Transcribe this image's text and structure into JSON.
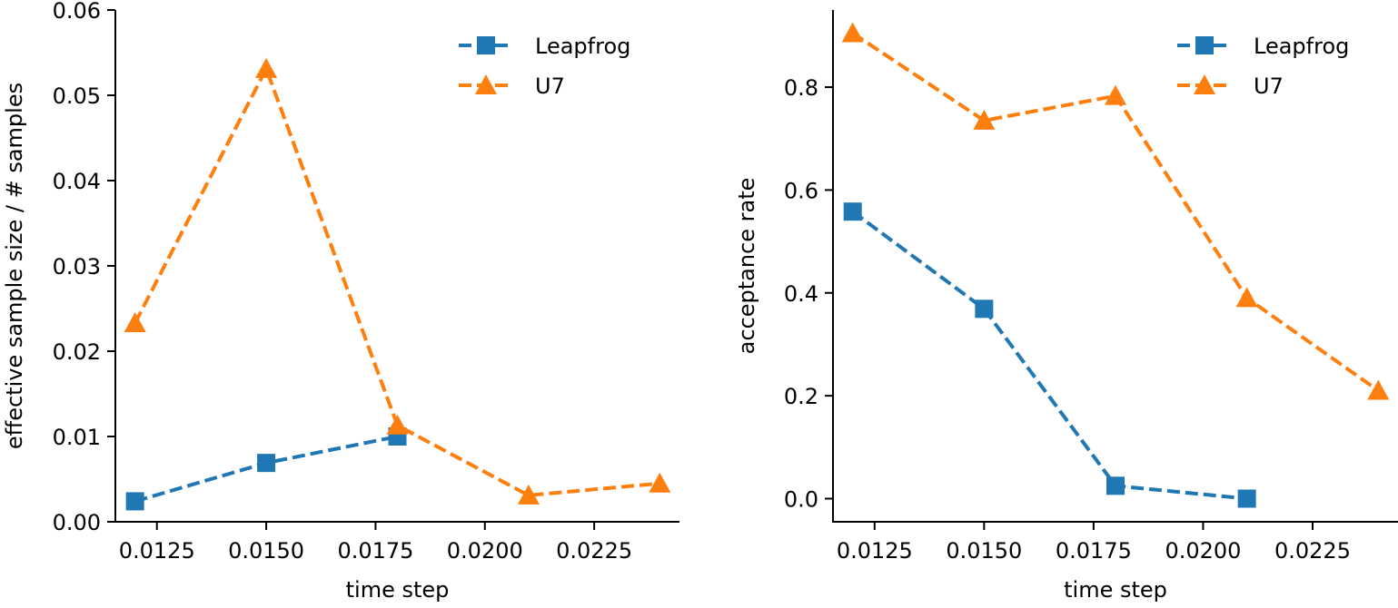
{
  "chart_data": [
    {
      "type": "line",
      "title": "",
      "xlabel": "time step",
      "ylabel": "effective sample size / # samples",
      "xlim": [
        0.01155,
        0.02445
      ],
      "ylim": [
        0.0,
        0.06
      ],
      "xticks": [
        0.0125,
        0.015,
        0.0175,
        0.02,
        0.0225
      ],
      "xtick_labels": [
        "0.0125",
        "0.0150",
        "0.0175",
        "0.0200",
        "0.0225"
      ],
      "yticks": [
        0.0,
        0.01,
        0.02,
        0.03,
        0.04,
        0.05,
        0.06
      ],
      "ytick_labels": [
        "0.00",
        "0.01",
        "0.02",
        "0.03",
        "0.04",
        "0.05",
        "0.06"
      ],
      "grid": false,
      "legend": "top-right",
      "series": [
        {
          "name": "Leapfrog",
          "color": "#1f77b4",
          "marker": "square",
          "linestyle": "dashed",
          "x": [
            0.012,
            0.015,
            0.018
          ],
          "y": [
            0.0024,
            0.0069,
            0.01
          ]
        },
        {
          "name": "U7",
          "color": "#ff7f0e",
          "marker": "triangle",
          "linestyle": "dashed",
          "x": [
            0.012,
            0.015,
            0.018,
            0.021,
            0.024
          ],
          "y": [
            0.0233,
            0.0531,
            0.0113,
            0.0031,
            0.0045
          ]
        }
      ]
    },
    {
      "type": "line",
      "title": "",
      "xlabel": "time step",
      "ylabel": "acceptance rate",
      "xlim": [
        0.01155,
        0.02445
      ],
      "ylim": [
        -0.045,
        0.95
      ],
      "xticks": [
        0.0125,
        0.015,
        0.0175,
        0.02,
        0.0225
      ],
      "xtick_labels": [
        "0.0125",
        "0.0150",
        "0.0175",
        "0.0200",
        "0.0225"
      ],
      "yticks": [
        0.0,
        0.2,
        0.4,
        0.6,
        0.8
      ],
      "ytick_labels": [
        "0.0",
        "0.2",
        "0.4",
        "0.6",
        "0.8"
      ],
      "grid": false,
      "legend": "top-right",
      "series": [
        {
          "name": "Leapfrog",
          "color": "#1f77b4",
          "marker": "square",
          "linestyle": "dashed",
          "x": [
            0.012,
            0.015,
            0.018,
            0.021
          ],
          "y": [
            0.558,
            0.369,
            0.025,
            0.0
          ]
        },
        {
          "name": "U7",
          "color": "#ff7f0e",
          "marker": "triangle",
          "linestyle": "dashed",
          "x": [
            0.012,
            0.015,
            0.018,
            0.021,
            0.024
          ],
          "y": [
            0.905,
            0.735,
            0.783,
            0.39,
            0.21
          ]
        }
      ]
    }
  ]
}
